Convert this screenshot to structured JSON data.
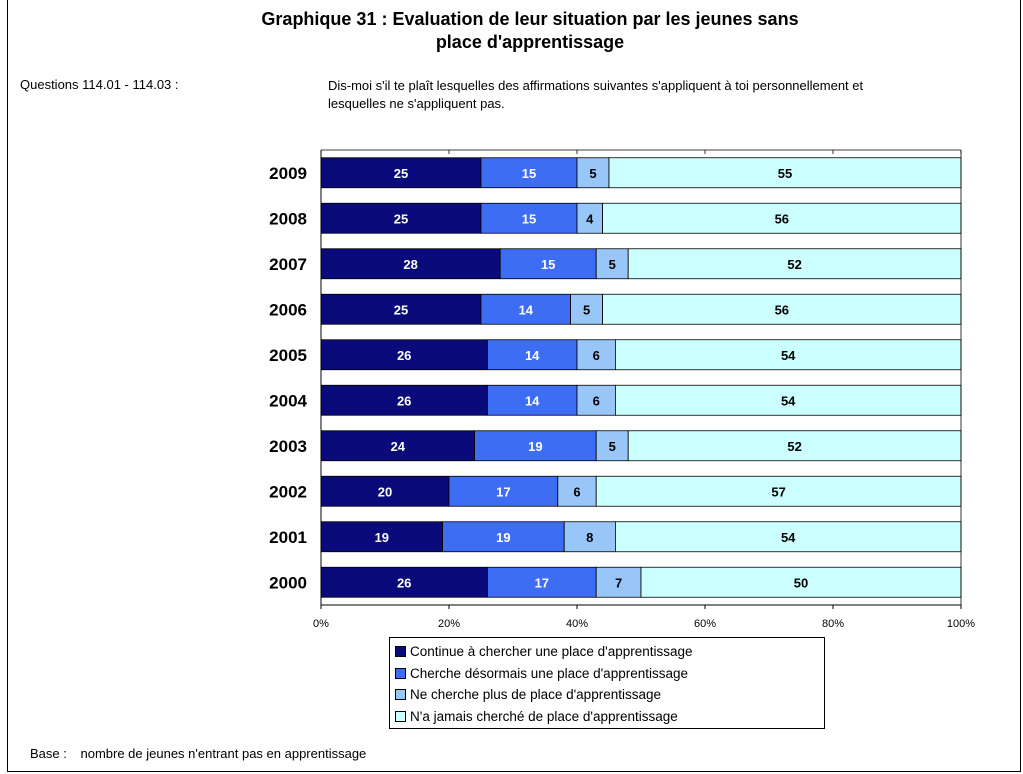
{
  "title_line1": "Graphique 31  : Evaluation de leur situation par les jeunes sans",
  "title_line2": "place d'apprentissage",
  "questions_label": "Questions 114.01 - 114.03  :",
  "questions_text": "Dis-moi s'il te plaît lesquelles des affirmations suivantes s'appliquent à toi personnellement et  lesquelles ne s'appliquent pas.",
  "base_label": "Base  :",
  "base_text": "nombre de jeunes n'entrant pas en apprentissage",
  "chart_data": {
    "type": "bar",
    "orientation": "horizontal",
    "stacked": true,
    "percent_stacked": true,
    "title": "Graphique 31  : Evaluation de leur situation par les jeunes sans place d'apprentissage",
    "categories": [
      "2009",
      "2008",
      "2007",
      "2006",
      "2005",
      "2004",
      "2003",
      "2002",
      "2001",
      "2000"
    ],
    "series": [
      {
        "name": "Continue à chercher une place d'apprentissage",
        "color": "#0a0a7a",
        "label_color": "#ffffff",
        "values": [
          25,
          25,
          28,
          25,
          26,
          26,
          24,
          20,
          19,
          26
        ]
      },
      {
        "name": "Cherche désormais une place d'apprentissage",
        "color": "#3d6df2",
        "label_color": "#ffffff",
        "values": [
          15,
          15,
          15,
          14,
          14,
          14,
          19,
          17,
          19,
          17
        ]
      },
      {
        "name": "Ne cherche plus de place d'apprentissage",
        "color": "#99c6f8",
        "label_color": "#000000",
        "values": [
          5,
          4,
          5,
          5,
          6,
          6,
          5,
          6,
          8,
          7
        ]
      },
      {
        "name": "N'a jamais cherché de place d'apprentissage",
        "color": "#ccffff",
        "label_color": "#000000",
        "values": [
          55,
          56,
          52,
          56,
          54,
          54,
          52,
          57,
          54,
          50
        ]
      }
    ],
    "x_ticks": [
      "0%",
      "20%",
      "40%",
      "60%",
      "80%",
      "100%"
    ],
    "xlim": [
      0,
      100
    ],
    "grid": false,
    "legend_position": "bottom"
  }
}
